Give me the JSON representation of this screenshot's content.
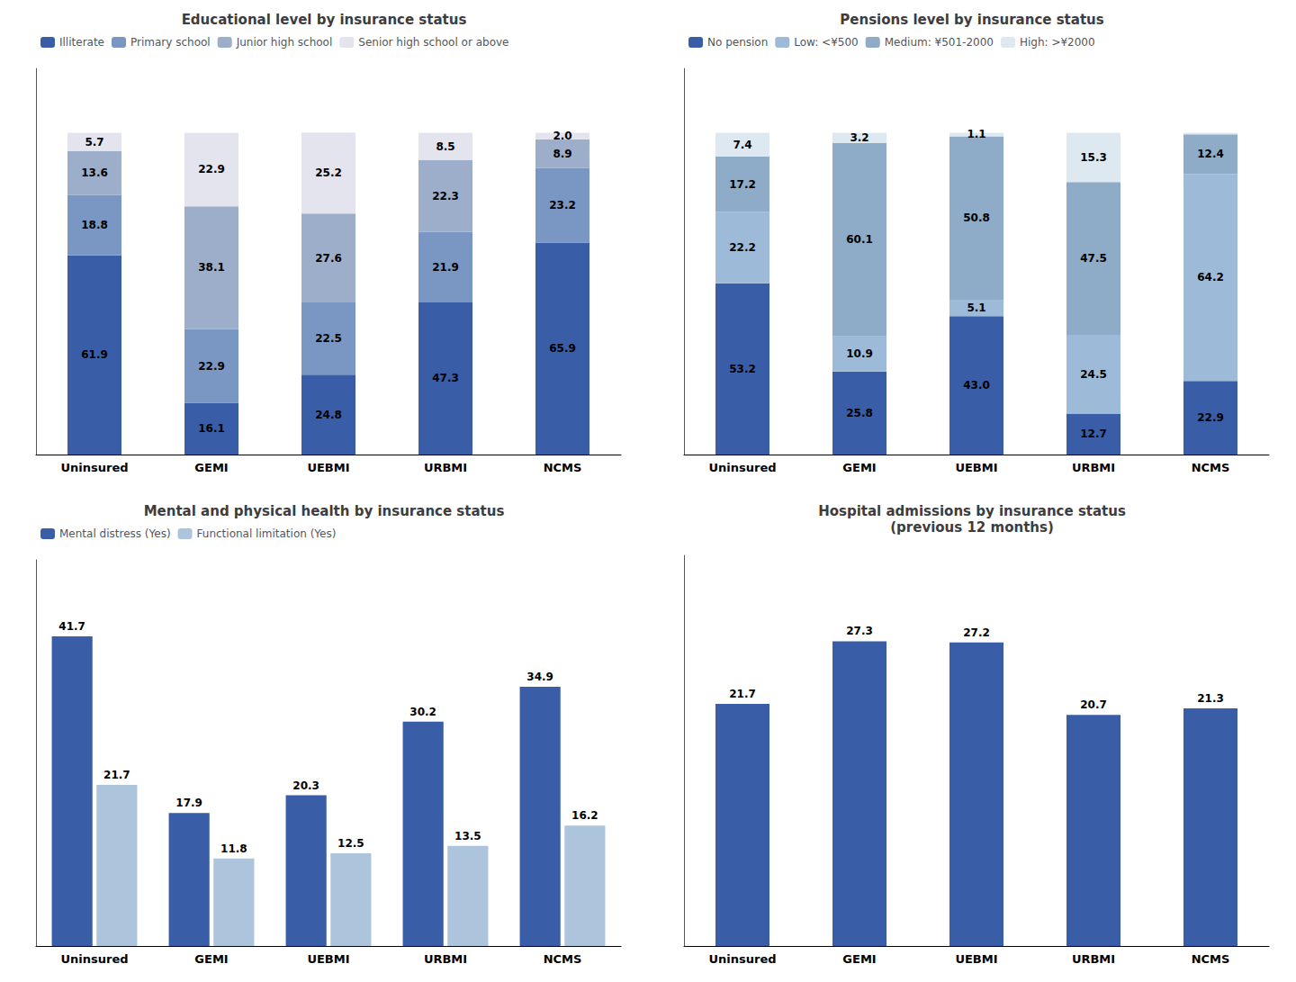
{
  "chart_data": [
    {
      "type": "bar",
      "title": "Educational level by insurance status",
      "categories": [
        "Uninsured",
        "GEMI",
        "UEBMI",
        "URBMI",
        "NCMS"
      ],
      "stacked": true,
      "data_labels": true,
      "legend": "upper left",
      "grid": false,
      "tick_labels": "x",
      "ylim": [
        0,
        120
      ],
      "series": [
        {
          "name": "Illiterate",
          "color": "#3a5da8",
          "values": [
            61.9,
            16.1,
            24.8,
            47.3,
            65.9
          ],
          "value_labels": [
            "61.9",
            "16.1",
            "24.8",
            "47.3",
            "65.9"
          ]
        },
        {
          "name": "Primary school",
          "color": "#7a96c2",
          "values": [
            18.8,
            22.9,
            22.5,
            21.9,
            23.2
          ],
          "value_labels": [
            "18.8",
            "22.9",
            "22.5",
            "21.9",
            "23.2"
          ]
        },
        {
          "name": "Junior high school",
          "color": "#9daecb",
          "values": [
            13.6,
            38.1,
            27.6,
            22.3,
            8.9
          ],
          "value_labels": [
            "13.6",
            "38.1",
            "27.6",
            "22.3",
            "8.9"
          ]
        },
        {
          "name": "Senior high school or above",
          "color": "#e4e4ef",
          "values": [
            5.7,
            22.9,
            25.2,
            8.5,
            2.0
          ],
          "value_labels": [
            "5.7",
            "22.9",
            "25.2",
            "8.5",
            "2.0"
          ]
        }
      ]
    },
    {
      "type": "bar",
      "title": "Pensions level by insurance status",
      "categories": [
        "Uninsured",
        "GEMI",
        "UEBMI",
        "URBMI",
        "NCMS"
      ],
      "stacked": true,
      "data_labels": true,
      "legend": "upper left",
      "grid": false,
      "tick_labels": "x",
      "ylim": [
        0,
        120
      ],
      "series": [
        {
          "name": "No pension",
          "color": "#3a5da8",
          "values": [
            53.2,
            25.8,
            43.0,
            12.7,
            22.9
          ],
          "value_labels": [
            "53.2",
            "25.8",
            "43.0",
            "12.7",
            "22.9"
          ]
        },
        {
          "name": "Low: <¥500",
          "color": "#9dbbd8",
          "values": [
            22.2,
            10.9,
            5.1,
            24.5,
            64.2
          ],
          "value_labels": [
            "22.2",
            "10.9",
            "5.1",
            "24.5",
            "64.2"
          ]
        },
        {
          "name": "Medium: ¥501-2000",
          "color": "#8eabc8",
          "values": [
            17.2,
            60.1,
            50.8,
            47.5,
            12.4
          ],
          "value_labels": [
            "17.2",
            "60.1",
            "50.8",
            "47.5",
            "12.4"
          ]
        },
        {
          "name": "High: >¥2000",
          "color": "#dde8f0",
          "values": [
            7.4,
            3.2,
            1.1,
            15.3,
            0.5
          ],
          "value_labels": [
            "7.4",
            "3.2",
            "1.1",
            "15.3",
            null
          ]
        }
      ]
    },
    {
      "type": "bar",
      "title": "Mental and physical health by insurance status",
      "categories": [
        "Uninsured",
        "GEMI",
        "UEBMI",
        "URBMI",
        "NCMS"
      ],
      "stacked": false,
      "data_labels": true,
      "legend": "upper left",
      "grid": false,
      "tick_labels": "x",
      "ylim": [
        0,
        52
      ],
      "series": [
        {
          "name": "Mental distress (Yes)",
          "color": "#3a5da8",
          "values": [
            41.7,
            17.9,
            20.3,
            30.2,
            34.9
          ],
          "value_labels": [
            "41.7",
            "17.9",
            "20.3",
            "30.2",
            "34.9"
          ]
        },
        {
          "name": "Functional limitation (Yes)",
          "color": "#adc4dd",
          "values": [
            21.7,
            11.8,
            12.5,
            13.5,
            16.2
          ],
          "value_labels": [
            "21.7",
            "11.8",
            "12.5",
            "13.5",
            "16.2"
          ]
        }
      ]
    },
    {
      "type": "bar",
      "title": "Hospital admissions by insurance status\n(previous 12 months)",
      "categories": [
        "Uninsured",
        "GEMI",
        "UEBMI",
        "URBMI",
        "NCMS"
      ],
      "data_labels": true,
      "grid": false,
      "tick_labels": "x",
      "ylim": [
        0,
        35
      ],
      "values": [
        21.7,
        27.3,
        27.2,
        20.7,
        21.3
      ],
      "value_labels": [
        "21.7",
        "27.3",
        "27.2",
        "20.7",
        "21.3"
      ],
      "color": "#3a5da8"
    }
  ]
}
